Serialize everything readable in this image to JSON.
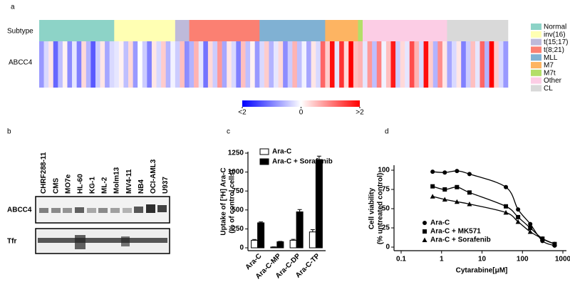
{
  "chart_data": [
    {
      "type": "heatmap",
      "label": "a",
      "row_labels": [
        "Subtype",
        "ABCC4"
      ],
      "subtypes": {
        "names": [
          "Normal",
          "inv(16)",
          "t(15;17)",
          "t(8;21)",
          "MLL",
          "M7",
          "M7t",
          "Other",
          "CL"
        ],
        "colors": [
          "#8dd3c7",
          "#ffffb3",
          "#bebada",
          "#fb8072",
          "#80b1d3",
          "#fdb462",
          "#b3de69",
          "#fccde5",
          "#d9d9d9"
        ],
        "counts": [
          16,
          13,
          3,
          15,
          14,
          7,
          1,
          18,
          13
        ]
      },
      "values": [
        -0.8,
        -0.3,
        0.2,
        -1.2,
        -0.5,
        0.1,
        -0.9,
        -0.2,
        -1.0,
        0.3,
        -0.6,
        -1.3,
        -0.4,
        0.2,
        -0.7,
        -0.3,
        -0.2,
        0.1,
        -0.5,
        0.3,
        -0.8,
        0.0,
        -0.4,
        -1.0,
        0.2,
        -0.3,
        0.4,
        -0.6,
        -0.1,
        -0.4,
        0.5,
        -0.9,
        -0.6,
        0.6,
        -0.2,
        -1.1,
        0.3,
        -0.4,
        0.8,
        -0.7,
        0.2,
        -0.3,
        -1.0,
        0.5,
        -0.5,
        0.1,
        -0.8,
        -0.3,
        0.4,
        -0.6,
        -0.2,
        0.3,
        -0.9,
        -0.4,
        0.6,
        -0.5,
        -0.1,
        -0.7,
        0.2,
        -0.3,
        1.2,
        0.4,
        1.9,
        -0.2,
        1.6,
        0.3,
        2.0,
        0.5,
        0.6,
        -0.2,
        0.8,
        -0.5,
        1.0,
        -0.1,
        0.5,
        1.8,
        -0.4,
        0.3,
        -0.2,
        1.4,
        0.6,
        -0.3,
        1.9,
        0.4,
        -0.6,
        0.9,
        0.2,
        -0.7,
        -0.3,
        0.2,
        -1.0,
        -0.4,
        0.5,
        -0.2,
        1.2,
        -0.6,
        2.0,
        0.4,
        -0.3,
        -0.8
      ],
      "colorscale": {
        "colors": [
          "#0000ff",
          "#ffffff",
          "#ff0000"
        ],
        "lim": [
          -2,
          2
        ],
        "ticks": [
          {
            "value": -2,
            "label": "<2"
          },
          0,
          {
            "value": 2,
            "label": ">2"
          }
        ]
      }
    },
    {
      "type": "bar",
      "label": "c",
      "ylabel": [
        "Uptake of [³H] Ara-C",
        "(% of control cells)"
      ],
      "categories": [
        "Ara-C",
        "Ara-C-MP",
        "Ara-C-DP",
        "Ara-C-TP"
      ],
      "series": [
        {
          "name": "Ara-C",
          "color": "#ffffff",
          "values": [
            100,
            10,
            100,
            210
          ],
          "errors": [
            10,
            3,
            12,
            30
          ]
        },
        {
          "name": "Ara-C + Sorafenib",
          "color": "#000000",
          "values": [
            330,
            80,
            475,
            1165
          ],
          "errors": [
            12,
            5,
            30,
            45
          ]
        }
      ],
      "ylim": [
        0,
        1250
      ],
      "yticks": [
        0,
        250,
        500,
        750,
        1000,
        1250
      ]
    },
    {
      "type": "scatter",
      "label": "d",
      "xscale": "log",
      "xlabel": "Cytarabine[μM]",
      "ylabel": [
        "Cell viability",
        "(% untreated control)"
      ],
      "x": [
        0.6,
        1.2,
        2.4,
        4.9,
        39,
        78,
        156,
        312,
        625
      ],
      "series": [
        {
          "name": "Ara-C",
          "marker": "circle",
          "color": "#000000",
          "values": [
            98,
            97,
            99,
            95,
            78,
            49,
            30,
            8,
            2
          ]
        },
        {
          "name": "Ara-C + MK571",
          "marker": "square",
          "color": "#000000",
          "values": [
            79,
            75,
            78,
            71,
            53,
            39,
            25,
            11,
            4
          ]
        },
        {
          "name": "Ara-C + Sorafenib",
          "marker": "triangle",
          "color": "#000000",
          "values": [
            66,
            62,
            59,
            56,
            45,
            33,
            20,
            11,
            4
          ]
        }
      ],
      "xlim": [
        0.1,
        1000
      ],
      "xticks": [
        0.1,
        1,
        10,
        100,
        1000
      ],
      "ylim": [
        0,
        100
      ],
      "yticks": [
        0,
        25,
        50,
        75,
        100
      ]
    }
  ],
  "blot": {
    "label": "b",
    "lanes": [
      "CHRF288-11",
      "CMS",
      "MO7e",
      "HL-60",
      "KG-1",
      "ML-2",
      "Molm13",
      "MV4-11",
      "NB4",
      "OCI-AML3",
      "U937"
    ],
    "rows": [
      "ABCC4",
      "Tfr"
    ]
  }
}
